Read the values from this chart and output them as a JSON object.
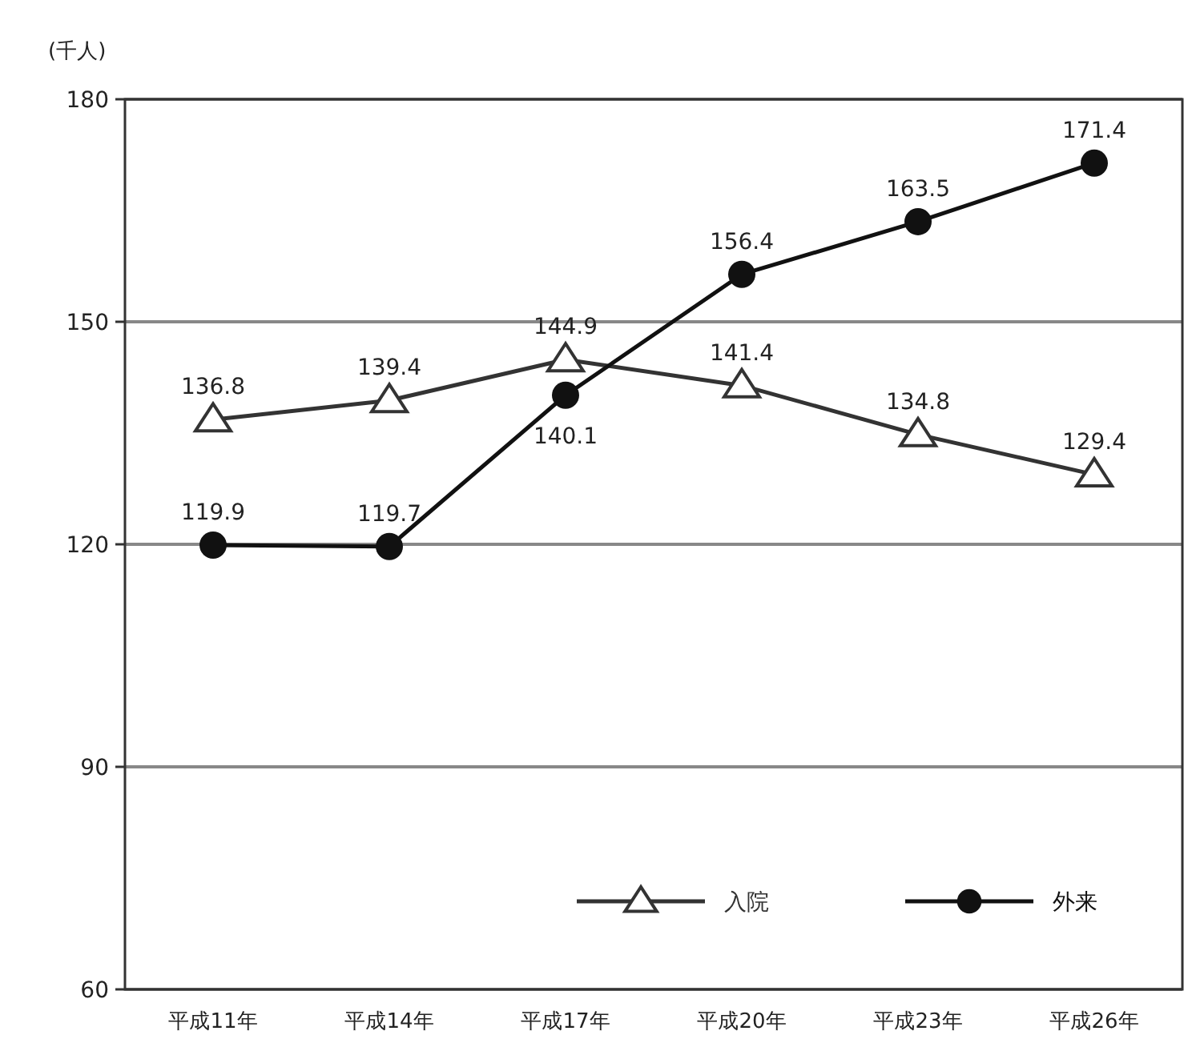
{
  "chart_data": {
    "type": "line",
    "ylabel": "(千人)",
    "categories": [
      "平成11年",
      "平成14年",
      "平成17年",
      "平成20年",
      "平成23年",
      "平成26年"
    ],
    "series": [
      {
        "name": "入院",
        "color": "#333333",
        "marker": "triangle",
        "values": [
          136.8,
          139.4,
          144.9,
          141.4,
          134.8,
          129.4
        ]
      },
      {
        "name": "外来",
        "color": "#111111",
        "marker": "circle",
        "values": [
          119.9,
          119.7,
          140.1,
          156.4,
          163.5,
          171.4
        ]
      }
    ],
    "ylim": [
      60,
      180
    ],
    "yticks": [
      60,
      90,
      120,
      150,
      180
    ],
    "grid": "y",
    "legend": "bottom right",
    "data_labels": true,
    "line_style": "solid"
  }
}
